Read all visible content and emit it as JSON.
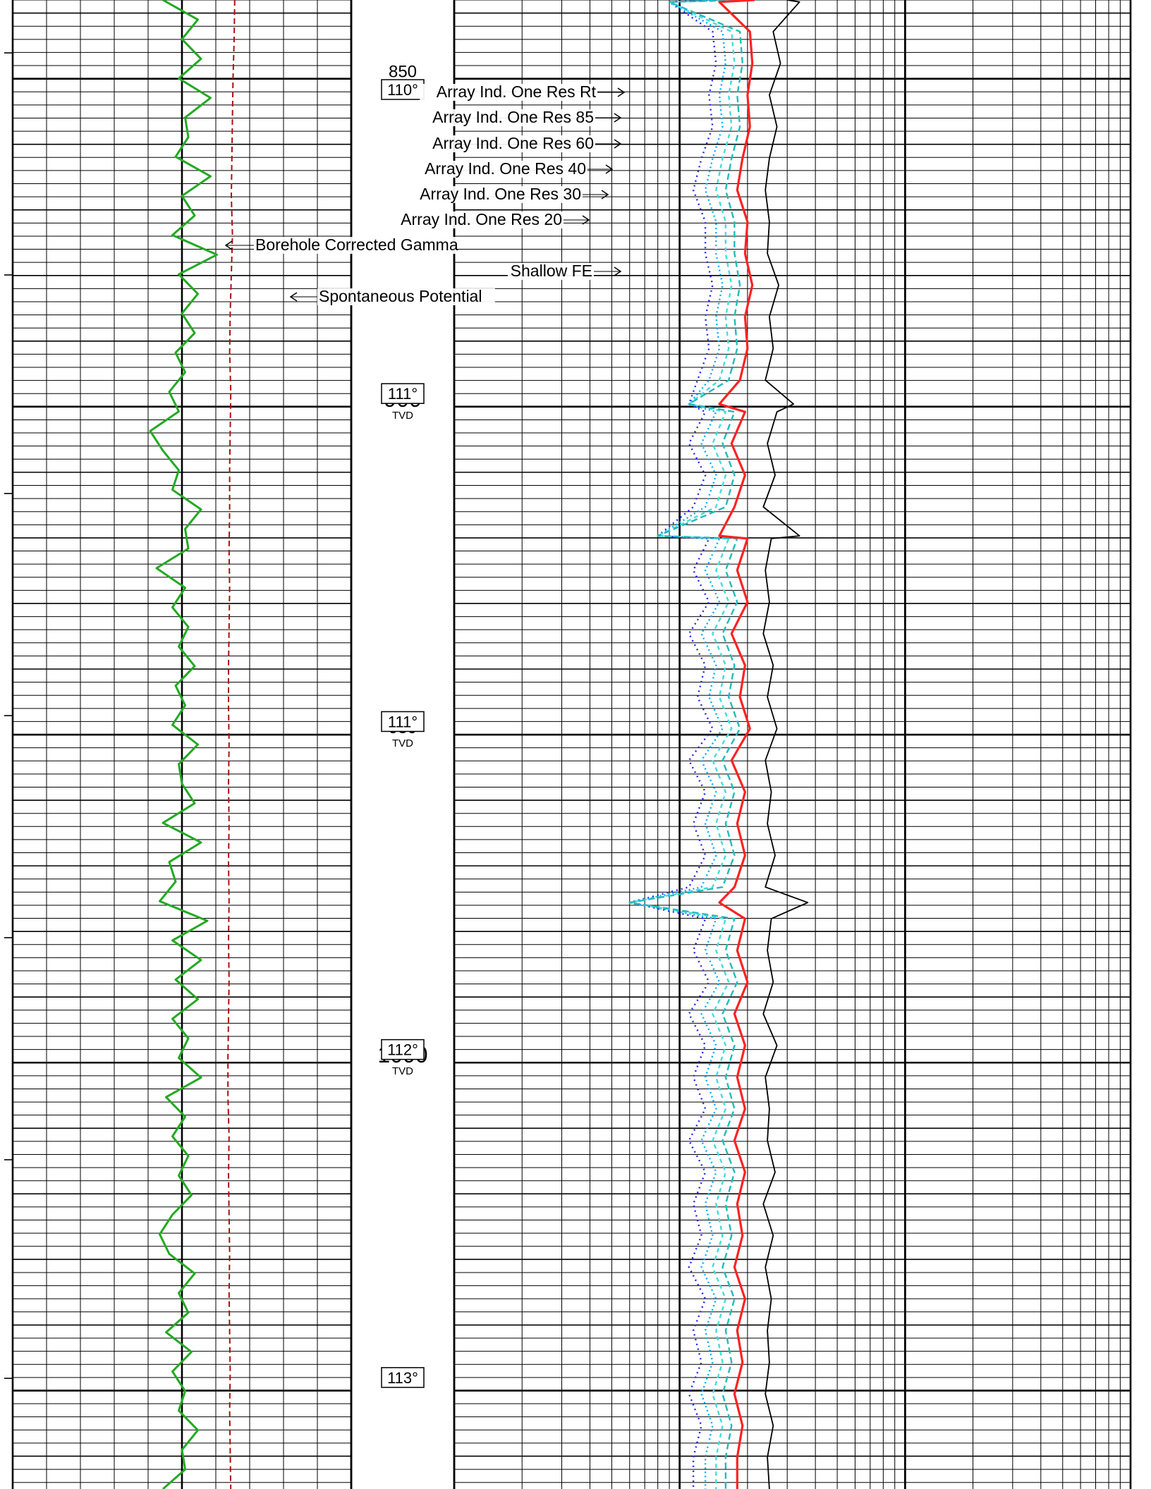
{
  "colors": {
    "gamma": "#22aa22",
    "sp": "#aa1111",
    "rt": "#000000",
    "res85": "#ff2222",
    "res60": "#22bbbb",
    "res40": "#44dddd",
    "res30": "#00aaff",
    "res20": "#2222ee",
    "grid": "#000000"
  },
  "chart_data": {
    "type": "line",
    "depth_unit": "TVD",
    "depth_range": [
      838,
      1065
    ],
    "depth_labels": [
      {
        "depth": 850,
        "text": "850",
        "sub": "TVD"
      },
      {
        "depth": 900,
        "text": "900",
        "sub": "TVD"
      },
      {
        "depth": 950,
        "text": "950",
        "sub": "TVD"
      },
      {
        "depth": 1000,
        "text": "1000",
        "sub": "TVD"
      }
    ],
    "inclination_labels": [
      {
        "depth": 848,
        "text": "110°"
      },
      {
        "depth": 898,
        "text": "111°"
      },
      {
        "depth": 948,
        "text": "111°"
      },
      {
        "depth": 998,
        "text": "112°"
      },
      {
        "depth": 1048,
        "text": "113°"
      }
    ],
    "curve_labels": [
      {
        "text": "Array Ind. One Res Rt",
        "curve": "rt"
      },
      {
        "text": "Array Ind. One Res 85",
        "curve": "res85"
      },
      {
        "text": "Array Ind. One Res 60",
        "curve": "res60"
      },
      {
        "text": "Array Ind. One Res 40",
        "curve": "res40"
      },
      {
        "text": "Array Ind. One Res 30",
        "curve": "res30"
      },
      {
        "text": "Array Ind. One Res 20",
        "curve": "res20"
      },
      {
        "text": "Borehole Corrected Gamma",
        "curve": "gamma"
      },
      {
        "text": "Shallow FE",
        "curve": "res20"
      },
      {
        "text": "Spontaneous Potential",
        "curve": "sp"
      }
    ],
    "series": [
      {
        "name": "Borehole Corrected Gamma",
        "key": "gamma",
        "track": "left",
        "style": "solid",
        "x": [
          0.2,
          0.75,
          0.5,
          0.8,
          0.45,
          0.95,
          0.55,
          0.6,
          0.4,
          0.95,
          0.5,
          0.7,
          0.35,
          1.05,
          0.45,
          0.75,
          0.5,
          0.7,
          0.4,
          0.55,
          0.3,
          0.45,
          0.0,
          0.2,
          0.45,
          0.35,
          0.8,
          0.55,
          0.6,
          0.1,
          0.55,
          0.35,
          0.6,
          0.45,
          0.7,
          0.4,
          0.55,
          0.35,
          0.75,
          0.45,
          0.5,
          0.7,
          0.2,
          0.8,
          0.3,
          0.4,
          0.15,
          0.9,
          0.35,
          0.8,
          0.4,
          0.75,
          0.35,
          0.6,
          0.45,
          0.8,
          0.25,
          0.55,
          0.35,
          0.6,
          0.45,
          0.65,
          0.35,
          0.15,
          0.3,
          0.7,
          0.45,
          0.6,
          0.25,
          0.65,
          0.35,
          0.55,
          0.45,
          0.75,
          0.5,
          0.55,
          0.2
        ]
      },
      {
        "name": "Spontaneous Potential",
        "key": "sp",
        "track": "left",
        "style": "dashed",
        "x": [
          0.56,
          0.55,
          0.53,
          0.52,
          0.51,
          0.5,
          0.52,
          0.5,
          0.48,
          0.47,
          0.49,
          0.48,
          0.47,
          0.47,
          0.46,
          0.47,
          0.46,
          0.45,
          0.45,
          0.46,
          0.45,
          0.46,
          0.45,
          0.46,
          0.45,
          0.46,
          0.45,
          0.44,
          0.44,
          0.46,
          0.45,
          0.46,
          0.47,
          0.46,
          0.47,
          0.48,
          0.47,
          0.48,
          0.49
        ]
      },
      {
        "name": "Array Ind. One Res Rt",
        "key": "rt",
        "track": "right",
        "style": "solid",
        "ohmm": [
          6.0,
          5.2,
          5.6,
          5.0,
          5.4,
          5.0,
          4.8,
          5.0,
          4.9,
          5.5,
          5.0,
          5.2,
          4.8,
          5.4,
          4.9,
          5.3,
          4.7,
          5.1,
          4.8,
          5.0,
          4.7,
          5.2,
          4.9,
          5.4,
          4.8,
          5.1,
          4.9,
          5.3,
          4.8,
          5.1,
          4.9,
          5.2,
          4.7,
          5.4,
          4.8,
          5.0,
          4.9,
          5.3,
          4.7,
          5.2,
          4.8,
          5.1,
          4.9,
          5.0,
          4.8,
          5.2,
          4.9,
          5.0
        ]
      },
      {
        "name": "Array Ind. One Res 85",
        "key": "res85",
        "track": "right",
        "style": "solid",
        "ohmm": [
          4.3,
          4.1,
          4.2,
          4.0,
          4.1,
          3.8,
          3.6,
          4.0,
          3.9,
          4.2,
          3.9,
          4.0,
          3.7,
          3.9,
          3.4,
          3.9,
          3.5,
          4.0,
          3.6,
          4.0,
          3.4,
          3.9,
          3.7,
          4.1,
          3.4,
          3.9,
          3.6,
          3.9,
          3.5,
          3.9,
          3.6,
          4.0,
          3.5,
          3.9,
          3.6,
          3.9,
          3.5,
          3.9,
          3.6,
          3.8,
          3.5,
          3.9,
          3.6,
          3.8,
          3.5,
          3.8,
          3.6,
          3.6
        ]
      },
      {
        "name": "Array Ind. One Res 60",
        "key": "res60",
        "track": "right",
        "style": "dashed",
        "ohmm": [
          3.9,
          3.7,
          3.8,
          3.6,
          3.7,
          3.4,
          3.2,
          3.5,
          3.5,
          3.7,
          3.5,
          3.6,
          3.3,
          3.5,
          3.1,
          3.5,
          3.2,
          3.6,
          3.2,
          3.6,
          3.1,
          3.5,
          3.3,
          3.7,
          3.1,
          3.5,
          3.2,
          3.5,
          3.1,
          3.5,
          3.2,
          3.6,
          3.1,
          3.5,
          3.2,
          3.5,
          3.1,
          3.5,
          3.2,
          3.4,
          3.1,
          3.5,
          3.2,
          3.4,
          3.1,
          3.4,
          3.2,
          3.2
        ]
      },
      {
        "name": "Array Ind. One Res 40",
        "key": "res40",
        "track": "right",
        "style": "dashed",
        "ohmm": [
          3.6,
          3.4,
          3.5,
          3.3,
          3.4,
          3.1,
          2.9,
          3.2,
          3.2,
          3.4,
          3.2,
          3.3,
          3.0,
          3.2,
          2.8,
          3.2,
          2.9,
          3.3,
          2.9,
          3.3,
          2.8,
          3.2,
          3.0,
          3.4,
          2.8,
          3.2,
          2.9,
          3.2,
          2.8,
          3.2,
          2.9,
          3.3,
          2.8,
          3.2,
          2.9,
          3.2,
          2.8,
          3.2,
          2.9,
          3.1,
          2.8,
          3.2,
          2.9,
          3.1,
          2.8,
          3.1,
          2.9,
          2.9
        ]
      },
      {
        "name": "Array Ind. One Res 30",
        "key": "res30",
        "track": "right",
        "style": "dotted",
        "ohmm": [
          3.3,
          3.1,
          3.2,
          3.0,
          3.1,
          2.8,
          2.6,
          2.9,
          2.9,
          3.1,
          2.9,
          3.0,
          2.7,
          2.9,
          2.5,
          2.9,
          2.6,
          3.0,
          2.6,
          3.0,
          2.5,
          2.9,
          2.7,
          3.1,
          2.5,
          2.9,
          2.6,
          2.9,
          2.5,
          2.9,
          2.6,
          3.0,
          2.5,
          2.9,
          2.6,
          2.9,
          2.5,
          2.9,
          2.6,
          2.8,
          2.5,
          2.9,
          2.6,
          2.8,
          2.5,
          2.8,
          2.6,
          2.6
        ]
      },
      {
        "name": "Array Ind. One Res 20",
        "key": "res20",
        "track": "right",
        "style": "dotted",
        "ohmm": [
          2.9,
          2.8,
          2.9,
          2.7,
          2.8,
          2.5,
          2.3,
          2.6,
          2.6,
          2.8,
          2.6,
          2.7,
          2.4,
          2.6,
          2.2,
          2.6,
          2.3,
          2.7,
          2.3,
          2.7,
          2.2,
          2.6,
          2.4,
          2.8,
          2.2,
          2.6,
          2.3,
          2.6,
          2.2,
          2.6,
          2.3,
          2.7,
          2.2,
          2.6,
          2.3,
          2.6,
          2.2,
          2.6,
          2.3,
          2.5,
          2.2,
          2.6,
          2.3,
          2.5,
          2.2,
          2.5,
          2.3,
          2.3
        ]
      }
    ],
    "spikes": [
      {
        "depth": 838.3,
        "shallow": 1.8,
        "rt": 6.8
      },
      {
        "depth": 899.6,
        "shallow": 2.2,
        "rt": 6.4
      },
      {
        "depth": 919.7,
        "shallow": 1.6,
        "rt": 6.8
      },
      {
        "depth": 975.6,
        "shallow": 1.2,
        "rt": 7.4
      }
    ]
  }
}
